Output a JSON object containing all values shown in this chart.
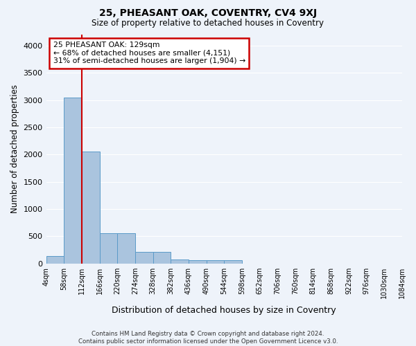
{
  "title": "25, PHEASANT OAK, COVENTRY, CV4 9XJ",
  "subtitle": "Size of property relative to detached houses in Coventry",
  "xlabel": "Distribution of detached houses by size in Coventry",
  "ylabel": "Number of detached properties",
  "footer_line1": "Contains HM Land Registry data © Crown copyright and database right 2024.",
  "footer_line2": "Contains public sector information licensed under the Open Government Licence v3.0.",
  "bin_labels": [
    "4sqm",
    "58sqm",
    "112sqm",
    "166sqm",
    "220sqm",
    "274sqm",
    "328sqm",
    "382sqm",
    "436sqm",
    "490sqm",
    "544sqm",
    "598sqm",
    "652sqm",
    "706sqm",
    "760sqm",
    "814sqm",
    "868sqm",
    "922sqm",
    "976sqm",
    "1030sqm",
    "1084sqm"
  ],
  "bar_values": [
    140,
    3050,
    2060,
    555,
    555,
    215,
    215,
    75,
    60,
    55,
    55,
    0,
    0,
    0,
    0,
    0,
    0,
    0,
    0,
    0
  ],
  "bar_color": "#aac4de",
  "bar_edge_color": "#5a9ac8",
  "bg_color": "#eef3fa",
  "grid_color": "#ffffff",
  "vline_x_index": 2.0,
  "annotation_text": "25 PHEASANT OAK: 129sqm\n← 68% of detached houses are smaller (4,151)\n31% of semi-detached houses are larger (1,904) →",
  "annotation_box_color": "#ffffff",
  "annotation_box_edge": "#cc0000",
  "vline_color": "#cc0000",
  "ylim": [
    0,
    4200
  ],
  "yticks": [
    0,
    500,
    1000,
    1500,
    2000,
    2500,
    3000,
    3500,
    4000
  ]
}
